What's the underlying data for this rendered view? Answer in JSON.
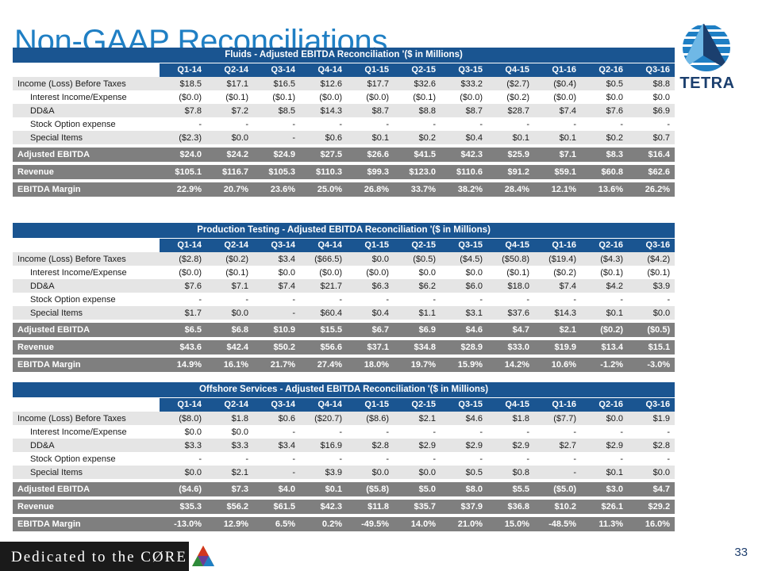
{
  "header": {
    "title": "Non-GAAP Reconciliations"
  },
  "logo": {
    "word": "TETRA",
    "icon": "tetra-logo-icon"
  },
  "columns": [
    "Q1-14",
    "Q2-14",
    "Q3-14",
    "Q4-14",
    "Q1-15",
    "Q2-15",
    "Q3-15",
    "Q4-15",
    "Q1-16",
    "Q2-16",
    "Q3-16"
  ],
  "tables": [
    {
      "title": "Fluids - Adjusted EBITDA Reconciliation '($ in Millions)",
      "lines": [
        {
          "label": "Income (Loss) Before Taxes",
          "values": [
            "$18.5",
            "$17.1",
            "$16.5",
            "$12.6",
            "$17.7",
            "$32.6",
            "$33.2",
            "($2.7)",
            "($0.4)",
            "$0.5",
            "$8.8"
          ]
        },
        {
          "label": "Interest Income/Expense",
          "values": [
            "($0.0)",
            "($0.1)",
            "($0.1)",
            "($0.0)",
            "($0.0)",
            "($0.1)",
            "($0.0)",
            "($0.2)",
            "($0.0)",
            "$0.0",
            "$0.0"
          ]
        },
        {
          "label": "DD&A",
          "values": [
            "$7.8",
            "$7.2",
            "$8.5",
            "$14.3",
            "$8.7",
            "$8.8",
            "$8.7",
            "$28.7",
            "$7.4",
            "$7.6",
            "$6.9"
          ]
        },
        {
          "label": "Stock Option expense",
          "values": [
            "-",
            "-",
            "-",
            "-",
            "-",
            "-",
            "-",
            "-",
            "-",
            "-",
            "-"
          ]
        },
        {
          "label": "Special Items",
          "values": [
            "($2.3)",
            "$0.0",
            "-",
            "$0.6",
            "$0.1",
            "$0.2",
            "$0.4",
            "$0.1",
            "$0.1",
            "$0.2",
            "$0.7"
          ]
        }
      ],
      "totals": [
        {
          "label": "Adjusted EBITDA",
          "values": [
            "$24.0",
            "$24.2",
            "$24.9",
            "$27.5",
            "$26.6",
            "$41.5",
            "$42.3",
            "$25.9",
            "$7.1",
            "$8.3",
            "$16.4"
          ]
        },
        {
          "label": "Revenue",
          "values": [
            "$105.1",
            "$116.7",
            "$105.3",
            "$110.3",
            "$99.3",
            "$123.0",
            "$110.6",
            "$91.2",
            "$59.1",
            "$60.8",
            "$62.6"
          ]
        },
        {
          "label": "EBITDA Margin",
          "values": [
            "22.9%",
            "20.7%",
            "23.6%",
            "25.0%",
            "26.8%",
            "33.7%",
            "38.2%",
            "28.4%",
            "12.1%",
            "13.6%",
            "26.2%"
          ]
        }
      ]
    },
    {
      "title": "Production Testing - Adjusted EBITDA Reconciliation '($ in Millions)",
      "lines": [
        {
          "label": "Income (Loss) Before Taxes",
          "values": [
            "($2.8)",
            "($0.2)",
            "$3.4",
            "($66.5)",
            "$0.0",
            "($0.5)",
            "($4.5)",
            "($50.8)",
            "($19.4)",
            "($4.3)",
            "($4.2)"
          ]
        },
        {
          "label": "Interest Income/Expense",
          "values": [
            "($0.0)",
            "($0.1)",
            "$0.0",
            "($0.0)",
            "($0.0)",
            "$0.0",
            "$0.0",
            "($0.1)",
            "($0.2)",
            "($0.1)",
            "($0.1)"
          ]
        },
        {
          "label": "DD&A",
          "values": [
            "$7.6",
            "$7.1",
            "$7.4",
            "$21.7",
            "$6.3",
            "$6.2",
            "$6.0",
            "$18.0",
            "$7.4",
            "$4.2",
            "$3.9"
          ]
        },
        {
          "label": "Stock Option expense",
          "values": [
            "-",
            "-",
            "-",
            "-",
            "-",
            "-",
            "-",
            "-",
            "-",
            "-",
            "-"
          ]
        },
        {
          "label": "Special Items",
          "values": [
            "$1.7",
            "$0.0",
            "-",
            "$60.4",
            "$0.4",
            "$1.1",
            "$3.1",
            "$37.6",
            "$14.3",
            "$0.1",
            "$0.0"
          ]
        }
      ],
      "totals": [
        {
          "label": "Adjusted EBITDA",
          "values": [
            "$6.5",
            "$6.8",
            "$10.9",
            "$15.5",
            "$6.7",
            "$6.9",
            "$4.6",
            "$4.7",
            "$2.1",
            "($0.2)",
            "($0.5)"
          ]
        },
        {
          "label": "Revenue",
          "values": [
            "$43.6",
            "$42.4",
            "$50.2",
            "$56.6",
            "$37.1",
            "$34.8",
            "$28.9",
            "$33.0",
            "$19.9",
            "$13.4",
            "$15.1"
          ]
        },
        {
          "label": "EBITDA Margin",
          "values": [
            "14.9%",
            "16.1%",
            "21.7%",
            "27.4%",
            "18.0%",
            "19.7%",
            "15.9%",
            "14.2%",
            "10.6%",
            "-1.2%",
            "-3.0%"
          ]
        }
      ]
    },
    {
      "title": "Offshore Services - Adjusted EBITDA Reconciliation '($ in Millions)",
      "lines": [
        {
          "label": "Income (Loss) Before Taxes",
          "values": [
            "($8.0)",
            "$1.8",
            "$0.6",
            "($20.7)",
            "($8.6)",
            "$2.1",
            "$4.6",
            "$1.8",
            "($7.7)",
            "$0.0",
            "$1.9"
          ]
        },
        {
          "label": "Interest Income/Expense",
          "values": [
            "$0.0",
            "$0.0",
            "-",
            "-",
            "-",
            "-",
            "-",
            "-",
            "-",
            "-",
            "-"
          ]
        },
        {
          "label": "DD&A",
          "values": [
            "$3.3",
            "$3.3",
            "$3.4",
            "$16.9",
            "$2.8",
            "$2.9",
            "$2.9",
            "$2.9",
            "$2.7",
            "$2.9",
            "$2.8"
          ]
        },
        {
          "label": "Stock Option expense",
          "values": [
            "-",
            "-",
            "-",
            "-",
            "-",
            "-",
            "-",
            "-",
            "-",
            "-",
            "-"
          ]
        },
        {
          "label": "Special Items",
          "values": [
            "$0.0",
            "$2.1",
            "-",
            "$3.9",
            "$0.0",
            "$0.0",
            "$0.5",
            "$0.8",
            "-",
            "$0.1",
            "$0.0"
          ]
        }
      ],
      "totals": [
        {
          "label": "Adjusted EBITDA",
          "values": [
            "($4.6)",
            "$7.3",
            "$4.0",
            "$0.1",
            "($5.8)",
            "$5.0",
            "$8.0",
            "$5.5",
            "($5.0)",
            "$3.0",
            "$4.7"
          ]
        },
        {
          "label": "Revenue",
          "values": [
            "$35.3",
            "$56.2",
            "$61.5",
            "$42.3",
            "$11.8",
            "$35.7",
            "$37.9",
            "$36.8",
            "$10.2",
            "$26.1",
            "$29.2"
          ]
        },
        {
          "label": "EBITDA Margin",
          "values": [
            "-13.0%",
            "12.9%",
            "6.5%",
            "0.2%",
            "-49.5%",
            "14.0%",
            "21.0%",
            "15.0%",
            "-48.5%",
            "11.3%",
            "16.0%"
          ]
        }
      ]
    }
  ],
  "footer": {
    "tagline": "Dedicated to the CØRE",
    "page_number": "33"
  },
  "colors": {
    "title_blue": "#1f7fc4",
    "header_blue": "#1a5591",
    "total_gray": "#7f7f7f",
    "shade_gray": "#e5e5e5"
  }
}
